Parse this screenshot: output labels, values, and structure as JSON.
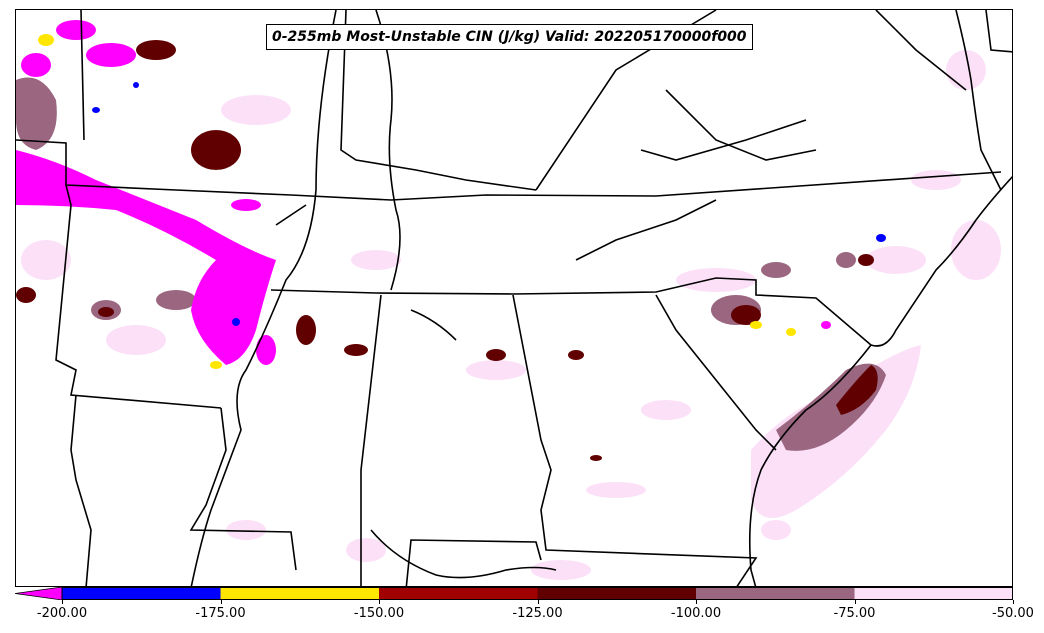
{
  "title": "0-255mb Most-Unstable CIN (J/kg) Valid: 202205170000f000",
  "colorbar": {
    "min": -200,
    "max": -50,
    "extend": "min",
    "extend_color": "#ff00ff",
    "bins": [
      {
        "from": -200,
        "to": -175,
        "color": "#0000ff"
      },
      {
        "from": -175,
        "to": -150,
        "color": "#ffe600"
      },
      {
        "from": -150,
        "to": -125,
        "color": "#a00000"
      },
      {
        "from": -125,
        "to": -100,
        "color": "#600000"
      },
      {
        "from": -100,
        "to": -75,
        "color": "#9a6680"
      },
      {
        "from": -75,
        "to": -50,
        "color": "#fbe0f8"
      }
    ],
    "ticks": [
      "-200.00",
      "-175.00",
      "-150.00",
      "-125.00",
      "-100.00",
      "-75.00",
      "-50.00"
    ],
    "tick_values": [
      -200,
      -175,
      -150,
      -125,
      -100,
      -75,
      -50
    ]
  },
  "map": {
    "region": "South-central and southeastern United States",
    "boundaries": [
      "state borders",
      "coastlines",
      "rivers"
    ]
  }
}
